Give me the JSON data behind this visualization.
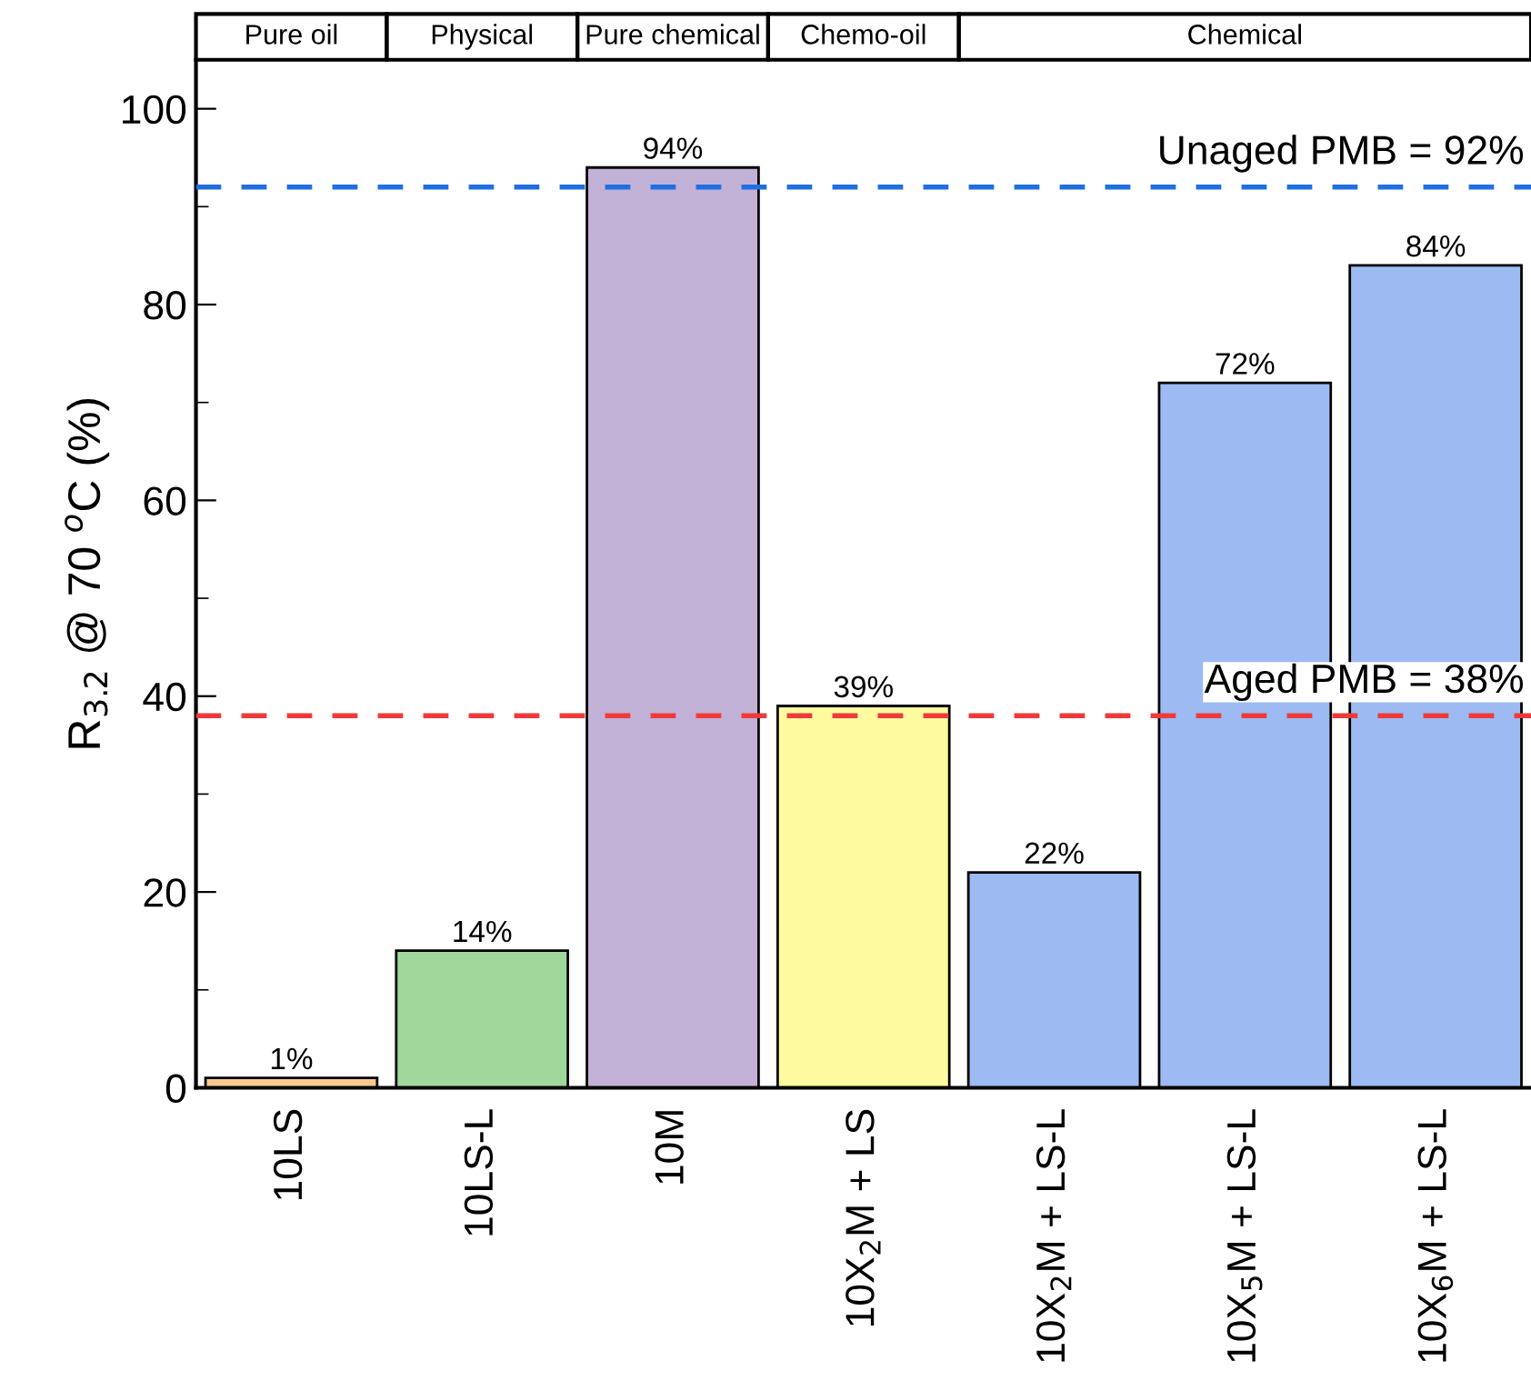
{
  "chart_data": {
    "type": "bar",
    "ylabel": "R$_{3.2}$ @ 70 $^{o}$C (%)",
    "categories": [
      "10LS",
      "10LS-L",
      "10M",
      "10X$_{2}$M + LS",
      "10X$_{2}$M + LS-L",
      "10X$_{5}$M + LS-L",
      "10X$_{6}$M + LS-L"
    ],
    "values": [
      1,
      14,
      94,
      39,
      22,
      72,
      84
    ],
    "colors": [
      "#f7c98f",
      "#a0d89c",
      "#c2b1d6",
      "#fdfa9f",
      "#9dbbf2",
      "#9dbbf2",
      "#9dbbf2"
    ],
    "value_labels": [
      "1%",
      "14%",
      "94%",
      "39%",
      "22%",
      "72%",
      "84%"
    ],
    "ylim": [
      0,
      105
    ],
    "yticks": [
      0,
      20,
      40,
      60,
      80,
      100
    ],
    "ref_lines": [
      {
        "axis": "y",
        "value": 92,
        "label": "Unaged PMB = 92%",
        "color": "#1f6fe0",
        "line_style": "dashed"
      },
      {
        "axis": "y",
        "value": 38,
        "label": "Aged PMB = 38%",
        "color": "#f03a3a",
        "line_style": "dashed"
      }
    ],
    "annotations": [
      "Pure oil",
      "Physical",
      "Pure chemical",
      "Chemo-oil",
      "Chemical"
    ],
    "grid": false,
    "legend": false
  }
}
